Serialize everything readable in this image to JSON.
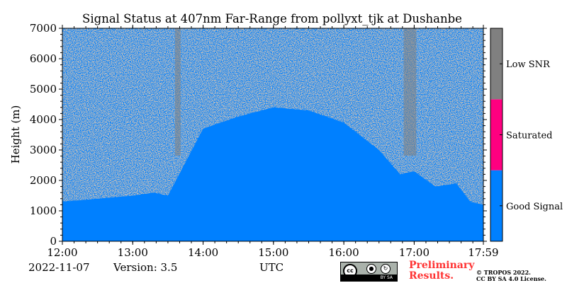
{
  "chart_data": {
    "type": "heatmap",
    "title": "Signal Status at 407nm Far-Range from pollyxt_tjk at Dushanbe",
    "xlabel": "UTC",
    "ylabel": "Height (m)",
    "x_ticks": [
      "12:00",
      "13:00",
      "14:00",
      "15:00",
      "16:00",
      "17:00",
      "17:59"
    ],
    "x_tick_values": [
      12.0,
      13.0,
      14.0,
      15.0,
      16.0,
      17.0,
      17.983
    ],
    "xlim": [
      12.0,
      17.983
    ],
    "y_ticks": [
      0,
      1000,
      2000,
      3000,
      4000,
      5000,
      6000,
      7000
    ],
    "ylim": [
      0,
      7000
    ],
    "colorbar": {
      "categories": [
        "Good Signal",
        "Saturated",
        "Low SNR"
      ],
      "colors": [
        "#0080ff",
        "#ff0080",
        "#808080"
      ]
    },
    "good_signal_top_profile": {
      "time_utc": [
        12.0,
        12.5,
        13.0,
        13.3,
        13.5,
        14.0,
        14.5,
        15.0,
        15.5,
        16.0,
        16.5,
        16.8,
        17.0,
        17.3,
        17.6,
        17.8,
        17.983
      ],
      "height_m": [
        1300,
        1400,
        1500,
        1600,
        1500,
        3700,
        4100,
        4400,
        4300,
        3900,
        3000,
        2200,
        2300,
        1800,
        1900,
        1300,
        1200
      ]
    }
  },
  "footer": {
    "date": "2022-11-07",
    "version": "Version: 3.5",
    "utc_label": "UTC",
    "preliminary_line1": "Preliminary",
    "preliminary_line2": "Results.",
    "copyright_line1": "© TROPOS 2022.",
    "copyright_line2": "CC BY SA 4.0 License.",
    "license_badge_text": "BY   SA",
    "license_badge_cc": "cc"
  }
}
